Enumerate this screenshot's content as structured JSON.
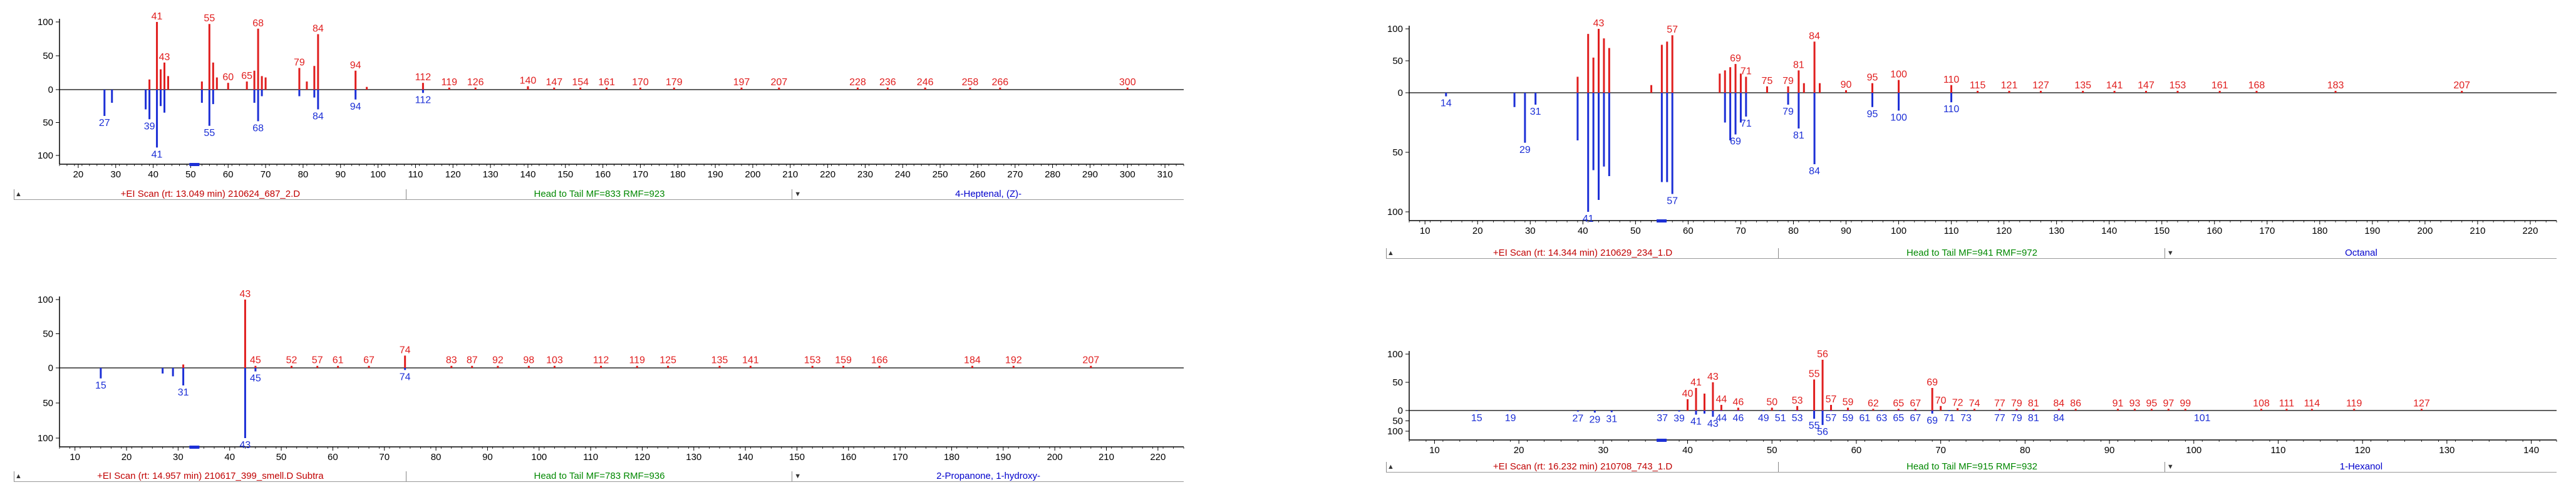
{
  "colors": {
    "library": "#e01e1e",
    "sample": "#1c2fd6",
    "axis": "#000000",
    "header_left": "#c00000",
    "header_mid": "#008800",
    "header_right": "#0000cc"
  },
  "chart_data": [
    {
      "type": "bar",
      "title_bar": {
        "scan": "+EI Scan (rt: 13.049 min) 210624_687_2.D",
        "match": "Head to Tail MF=833 RMF=923",
        "compound": "4-Heptenal, (Z)-"
      },
      "xlim": [
        15,
        315
      ],
      "xticks": [
        20,
        30,
        40,
        50,
        60,
        70,
        80,
        90,
        100,
        110,
        120,
        130,
        140,
        150,
        160,
        170,
        180,
        190,
        200,
        210,
        220,
        230,
        240,
        250,
        260,
        270,
        280,
        290,
        300,
        310
      ],
      "yticks": [
        100,
        50,
        0,
        50,
        100
      ],
      "library_peaks": [
        {
          "x": 39,
          "y": 15
        },
        {
          "x": 41,
          "y": 100,
          "label": "41"
        },
        {
          "x": 42,
          "y": 30
        },
        {
          "x": 43,
          "y": 40,
          "label": "43"
        },
        {
          "x": 44,
          "y": 20
        },
        {
          "x": 53,
          "y": 12
        },
        {
          "x": 55,
          "y": 97,
          "label": "55"
        },
        {
          "x": 56,
          "y": 40
        },
        {
          "x": 57,
          "y": 18
        },
        {
          "x": 60,
          "y": 10,
          "label": "60"
        },
        {
          "x": 65,
          "y": 12,
          "label": "65"
        },
        {
          "x": 67,
          "y": 28
        },
        {
          "x": 68,
          "y": 90,
          "label": "68"
        },
        {
          "x": 69,
          "y": 20
        },
        {
          "x": 70,
          "y": 18
        },
        {
          "x": 79,
          "y": 32,
          "label": "79"
        },
        {
          "x": 81,
          "y": 12
        },
        {
          "x": 83,
          "y": 35
        },
        {
          "x": 84,
          "y": 82,
          "label": "84"
        },
        {
          "x": 94,
          "y": 28,
          "label": "94"
        },
        {
          "x": 97,
          "y": 4
        },
        {
          "x": 112,
          "y": 10,
          "label": "112"
        },
        {
          "x": 119,
          "y": 3,
          "label": "119"
        },
        {
          "x": 126,
          "y": 3,
          "label": "126"
        },
        {
          "x": 140,
          "y": 5,
          "label": "140"
        },
        {
          "x": 147,
          "y": 3,
          "label": "147"
        },
        {
          "x": 154,
          "y": 3,
          "label": "154"
        },
        {
          "x": 161,
          "y": 3,
          "label": "161"
        },
        {
          "x": 170,
          "y": 3,
          "label": "170"
        },
        {
          "x": 179,
          "y": 3,
          "label": "179"
        },
        {
          "x": 197,
          "y": 3,
          "label": "197"
        },
        {
          "x": 207,
          "y": 3,
          "label": "207"
        },
        {
          "x": 228,
          "y": 3,
          "label": "228"
        },
        {
          "x": 236,
          "y": 3,
          "label": "236"
        },
        {
          "x": 246,
          "y": 3,
          "label": "246"
        },
        {
          "x": 258,
          "y": 3,
          "label": "258"
        },
        {
          "x": 266,
          "y": 3,
          "label": "266"
        },
        {
          "x": 300,
          "y": 3,
          "label": "300"
        }
      ],
      "sample_peaks": [
        {
          "x": 27,
          "y": 40,
          "label": "27"
        },
        {
          "x": 29,
          "y": 20
        },
        {
          "x": 38,
          "y": 30
        },
        {
          "x": 39,
          "y": 45,
          "label": "39"
        },
        {
          "x": 41,
          "y": 88,
          "label": "41"
        },
        {
          "x": 42,
          "y": 25
        },
        {
          "x": 43,
          "y": 35
        },
        {
          "x": 53,
          "y": 20
        },
        {
          "x": 55,
          "y": 55,
          "label": "55"
        },
        {
          "x": 56,
          "y": 22
        },
        {
          "x": 67,
          "y": 20
        },
        {
          "x": 68,
          "y": 48,
          "label": "68"
        },
        {
          "x": 69,
          "y": 10
        },
        {
          "x": 79,
          "y": 10
        },
        {
          "x": 83,
          "y": 12
        },
        {
          "x": 84,
          "y": 30,
          "label": "84"
        },
        {
          "x": 94,
          "y": 15,
          "label": "94"
        },
        {
          "x": 112,
          "y": 5,
          "label": "112"
        }
      ]
    },
    {
      "type": "bar",
      "title_bar": {
        "scan": "+EI Scan (rt: 14.344 min) 210629_234_1.D",
        "match": "Head to Tail MF=941 RMF=972",
        "compound": "Octanal"
      },
      "xlim": [
        7,
        225
      ],
      "xticks": [
        10,
        20,
        30,
        40,
        50,
        60,
        70,
        80,
        90,
        100,
        110,
        120,
        130,
        140,
        150,
        160,
        170,
        180,
        190,
        200,
        210,
        220
      ],
      "yticks": [
        100,
        50,
        0,
        50,
        100
      ],
      "library_peaks": [
        {
          "x": 39,
          "y": 25
        },
        {
          "x": 41,
          "y": 92
        },
        {
          "x": 42,
          "y": 55
        },
        {
          "x": 43,
          "y": 100,
          "label": "43"
        },
        {
          "x": 44,
          "y": 85
        },
        {
          "x": 45,
          "y": 70
        },
        {
          "x": 53,
          "y": 12
        },
        {
          "x": 55,
          "y": 75
        },
        {
          "x": 56,
          "y": 80
        },
        {
          "x": 57,
          "y": 90,
          "label": "57"
        },
        {
          "x": 66,
          "y": 30
        },
        {
          "x": 67,
          "y": 35
        },
        {
          "x": 68,
          "y": 40
        },
        {
          "x": 69,
          "y": 45,
          "label": "69"
        },
        {
          "x": 70,
          "y": 30
        },
        {
          "x": 71,
          "y": 25,
          "label": "71"
        },
        {
          "x": 75,
          "y": 10,
          "label": "75"
        },
        {
          "x": 79,
          "y": 10,
          "label": "79"
        },
        {
          "x": 81,
          "y": 35,
          "label": "81"
        },
        {
          "x": 82,
          "y": 15
        },
        {
          "x": 84,
          "y": 80,
          "label": "84"
        },
        {
          "x": 85,
          "y": 15
        },
        {
          "x": 90,
          "y": 4,
          "label": "90"
        },
        {
          "x": 95,
          "y": 15,
          "label": "95"
        },
        {
          "x": 100,
          "y": 20,
          "label": "100"
        },
        {
          "x": 110,
          "y": 12,
          "label": "110"
        },
        {
          "x": 115,
          "y": 3,
          "label": "115"
        },
        {
          "x": 121,
          "y": 3,
          "label": "121"
        },
        {
          "x": 127,
          "y": 3,
          "label": "127"
        },
        {
          "x": 135,
          "y": 3,
          "label": "135"
        },
        {
          "x": 141,
          "y": 3,
          "label": "141"
        },
        {
          "x": 147,
          "y": 3,
          "label": "147"
        },
        {
          "x": 153,
          "y": 3,
          "label": "153"
        },
        {
          "x": 161,
          "y": 3,
          "label": "161"
        },
        {
          "x": 168,
          "y": 3,
          "label": "168"
        },
        {
          "x": 183,
          "y": 3,
          "label": "183"
        },
        {
          "x": 207,
          "y": 3,
          "label": "207"
        }
      ],
      "sample_peaks": [
        {
          "x": 14,
          "y": 3,
          "label": "14"
        },
        {
          "x": 27,
          "y": 12
        },
        {
          "x": 29,
          "y": 42,
          "label": "29"
        },
        {
          "x": 31,
          "y": 10,
          "label": "31"
        },
        {
          "x": 39,
          "y": 40
        },
        {
          "x": 41,
          "y": 100,
          "label": "41"
        },
        {
          "x": 42,
          "y": 65
        },
        {
          "x": 43,
          "y": 90
        },
        {
          "x": 44,
          "y": 62
        },
        {
          "x": 45,
          "y": 70
        },
        {
          "x": 55,
          "y": 75
        },
        {
          "x": 56,
          "y": 75
        },
        {
          "x": 57,
          "y": 85,
          "label": "57"
        },
        {
          "x": 67,
          "y": 25
        },
        {
          "x": 68,
          "y": 40
        },
        {
          "x": 69,
          "y": 35,
          "label": "69"
        },
        {
          "x": 70,
          "y": 25
        },
        {
          "x": 71,
          "y": 20,
          "label": "71"
        },
        {
          "x": 79,
          "y": 10,
          "label": "79"
        },
        {
          "x": 81,
          "y": 30,
          "label": "81"
        },
        {
          "x": 84,
          "y": 60,
          "label": "84"
        },
        {
          "x": 95,
          "y": 12,
          "label": "95"
        },
        {
          "x": 100,
          "y": 15,
          "label": "100"
        },
        {
          "x": 110,
          "y": 8,
          "label": "110"
        }
      ]
    },
    {
      "type": "bar",
      "title_bar": {
        "scan": "+EI Scan (rt: 14.957 min) 210617_399_smell.D  Subtra",
        "match": "Head to Tail MF=783 RMF=936",
        "compound": "2-Propanone, 1-hydroxy-"
      },
      "xlim": [
        7,
        225
      ],
      "xticks": [
        10,
        20,
        30,
        40,
        50,
        60,
        70,
        80,
        90,
        100,
        110,
        120,
        130,
        140,
        150,
        160,
        170,
        180,
        190,
        200,
        210,
        220
      ],
      "yticks": [
        100,
        50,
        0,
        50,
        100
      ],
      "library_peaks": [
        {
          "x": 31,
          "y": 5
        },
        {
          "x": 43,
          "y": 100,
          "label": "43"
        },
        {
          "x": 45,
          "y": 3,
          "label": "45"
        },
        {
          "x": 52,
          "y": 3,
          "label": "52"
        },
        {
          "x": 57,
          "y": 3,
          "label": "57"
        },
        {
          "x": 61,
          "y": 3,
          "label": "61"
        },
        {
          "x": 67,
          "y": 3,
          "label": "67"
        },
        {
          "x": 74,
          "y": 18,
          "label": "74"
        },
        {
          "x": 83,
          "y": 3,
          "label": "83"
        },
        {
          "x": 87,
          "y": 3,
          "label": "87"
        },
        {
          "x": 92,
          "y": 3,
          "label": "92"
        },
        {
          "x": 98,
          "y": 3,
          "label": "98"
        },
        {
          "x": 103,
          "y": 3,
          "label": "103"
        },
        {
          "x": 112,
          "y": 3,
          "label": "112"
        },
        {
          "x": 119,
          "y": 3,
          "label": "119"
        },
        {
          "x": 125,
          "y": 3,
          "label": "125"
        },
        {
          "x": 135,
          "y": 3,
          "label": "135"
        },
        {
          "x": 141,
          "y": 3,
          "label": "141"
        },
        {
          "x": 153,
          "y": 3,
          "label": "153"
        },
        {
          "x": 159,
          "y": 3,
          "label": "159"
        },
        {
          "x": 166,
          "y": 3,
          "label": "166"
        },
        {
          "x": 184,
          "y": 3,
          "label": "184"
        },
        {
          "x": 192,
          "y": 3,
          "label": "192"
        },
        {
          "x": 207,
          "y": 3,
          "label": "207"
        }
      ],
      "sample_peaks": [
        {
          "x": 15,
          "y": 15,
          "label": "15"
        },
        {
          "x": 27,
          "y": 8
        },
        {
          "x": 29,
          "y": 12
        },
        {
          "x": 31,
          "y": 25,
          "label": "31"
        },
        {
          "x": 43,
          "y": 100,
          "label": "43"
        },
        {
          "x": 45,
          "y": 5,
          "label": "45"
        },
        {
          "x": 74,
          "y": 3,
          "label": "74"
        }
      ]
    },
    {
      "type": "bar",
      "title_bar": {
        "scan": "+EI Scan (rt: 16.232 min) 210708_743_1.D",
        "match": "Head to Tail MF=915 RMF=932",
        "compound": "1-Hexanol"
      },
      "xlim": [
        7,
        143
      ],
      "xticks": [
        10,
        20,
        30,
        40,
        50,
        60,
        70,
        80,
        90,
        100,
        110,
        120,
        130,
        140
      ],
      "yticks": [
        100,
        50,
        0,
        50,
        100
      ],
      "library_peaks": [
        {
          "x": 40,
          "y": 20,
          "label": "40"
        },
        {
          "x": 41,
          "y": 40,
          "label": "41"
        },
        {
          "x": 42,
          "y": 30
        },
        {
          "x": 43,
          "y": 50,
          "label": "43"
        },
        {
          "x": 44,
          "y": 10,
          "label": "44"
        },
        {
          "x": 46,
          "y": 5,
          "label": "46"
        },
        {
          "x": 50,
          "y": 5,
          "label": "50"
        },
        {
          "x": 53,
          "y": 8,
          "label": "53"
        },
        {
          "x": 55,
          "y": 55,
          "label": "55"
        },
        {
          "x": 56,
          "y": 90,
          "label": "56"
        },
        {
          "x": 57,
          "y": 10,
          "label": "57"
        },
        {
          "x": 59,
          "y": 5,
          "label": "59"
        },
        {
          "x": 62,
          "y": 3,
          "label": "62"
        },
        {
          "x": 65,
          "y": 3,
          "label": "65"
        },
        {
          "x": 67,
          "y": 3,
          "label": "67"
        },
        {
          "x": 69,
          "y": 40,
          "label": "69"
        },
        {
          "x": 70,
          "y": 8,
          "label": "70"
        },
        {
          "x": 72,
          "y": 4,
          "label": "72"
        },
        {
          "x": 74,
          "y": 3,
          "label": "74"
        },
        {
          "x": 77,
          "y": 3,
          "label": "77"
        },
        {
          "x": 79,
          "y": 3,
          "label": "79"
        },
        {
          "x": 81,
          "y": 3,
          "label": "81"
        },
        {
          "x": 84,
          "y": 3,
          "label": "84"
        },
        {
          "x": 86,
          "y": 3,
          "label": "86"
        },
        {
          "x": 91,
          "y": 3,
          "label": "91"
        },
        {
          "x": 93,
          "y": 3,
          "label": "93"
        },
        {
          "x": 95,
          "y": 3,
          "label": "95"
        },
        {
          "x": 97,
          "y": 3,
          "label": "97"
        },
        {
          "x": 99,
          "y": 3,
          "label": "99"
        },
        {
          "x": 108,
          "y": 3,
          "label": "108"
        },
        {
          "x": 111,
          "y": 3,
          "label": "111"
        },
        {
          "x": 114,
          "y": 3,
          "label": "114"
        },
        {
          "x": 119,
          "y": 3,
          "label": "119"
        },
        {
          "x": 127,
          "y": 3,
          "label": "127"
        }
      ],
      "sample_peaks": [
        {
          "x": 15,
          "y": 3,
          "label": "15"
        },
        {
          "x": 19,
          "y": 3,
          "label": "19"
        },
        {
          "x": 27,
          "y": 5,
          "label": "27"
        },
        {
          "x": 29,
          "y": 10,
          "label": "29"
        },
        {
          "x": 31,
          "y": 8,
          "label": "31"
        },
        {
          "x": 37,
          "y": 3,
          "label": "37"
        },
        {
          "x": 39,
          "y": 5,
          "label": "39"
        },
        {
          "x": 41,
          "y": 20,
          "label": "41"
        },
        {
          "x": 42,
          "y": 15
        },
        {
          "x": 43,
          "y": 30,
          "label": "43"
        },
        {
          "x": 44,
          "y": 3,
          "label": "44"
        },
        {
          "x": 46,
          "y": 3,
          "label": "46"
        },
        {
          "x": 49,
          "y": 3,
          "label": "49"
        },
        {
          "x": 51,
          "y": 3,
          "label": "51"
        },
        {
          "x": 53,
          "y": 3,
          "label": "53"
        },
        {
          "x": 55,
          "y": 40,
          "label": "55"
        },
        {
          "x": 56,
          "y": 70,
          "label": "56"
        },
        {
          "x": 57,
          "y": 3,
          "label": "57"
        },
        {
          "x": 59,
          "y": 3,
          "label": "59"
        },
        {
          "x": 61,
          "y": 3,
          "label": "61"
        },
        {
          "x": 63,
          "y": 3,
          "label": "63"
        },
        {
          "x": 65,
          "y": 3,
          "label": "65"
        },
        {
          "x": 67,
          "y": 3,
          "label": "67"
        },
        {
          "x": 69,
          "y": 15,
          "label": "69"
        },
        {
          "x": 71,
          "y": 3,
          "label": "71"
        },
        {
          "x": 73,
          "y": 3,
          "label": "73"
        },
        {
          "x": 77,
          "y": 3,
          "label": "77"
        },
        {
          "x": 79,
          "y": 3,
          "label": "79"
        },
        {
          "x": 81,
          "y": 3,
          "label": "81"
        },
        {
          "x": 84,
          "y": 3,
          "label": "84"
        },
        {
          "x": 101,
          "y": 3,
          "label": "101"
        }
      ]
    }
  ]
}
